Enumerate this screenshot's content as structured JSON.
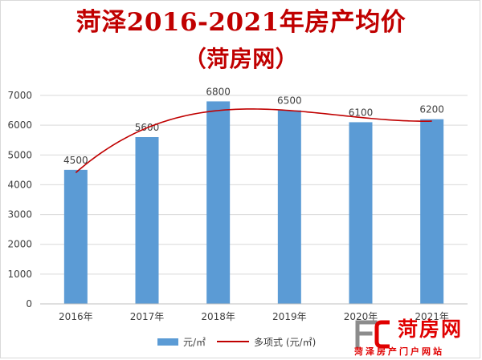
{
  "chart_data": {
    "type": "bar",
    "title": "菏泽2016-2021年房产均价",
    "subtitle": "（菏房网）",
    "categories": [
      "2016年",
      "2017年",
      "2018年",
      "2019年",
      "2020年",
      "2021年"
    ],
    "series": [
      {
        "name": "元/㎡",
        "type": "bar",
        "color": "#5b9bd5",
        "values": [
          4500,
          5600,
          6800,
          6500,
          6100,
          6200
        ],
        "data_labels": [
          "4500",
          "5600",
          "6800",
          "6500",
          "6100",
          "6200"
        ]
      },
      {
        "name": "多项式 (元/㎡)",
        "type": "trendline-polynomial",
        "color": "#c00000"
      }
    ],
    "ylim": [
      0,
      7000
    ],
    "yticks": [
      0,
      1000,
      2000,
      3000,
      4000,
      5000,
      6000,
      7000
    ],
    "ytick_labels": [
      "0",
      "1000",
      "2000",
      "3000",
      "4000",
      "5000",
      "6000",
      "7000"
    ],
    "grid": true,
    "legend_position": "bottom"
  },
  "watermark": {
    "logo_text": "菏房网",
    "tagline": "菏泽房产门户网站",
    "logo_color": "#e00000"
  }
}
